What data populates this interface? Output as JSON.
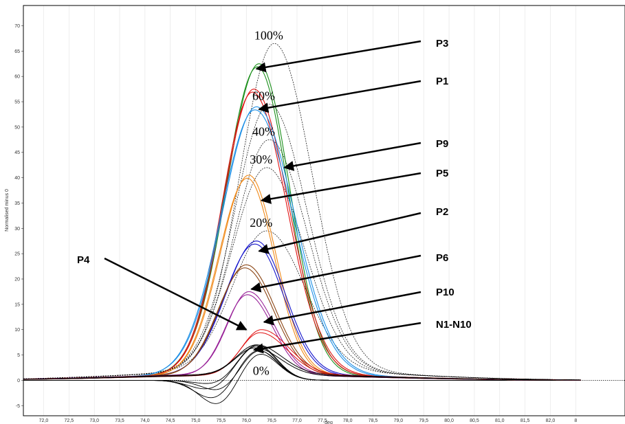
{
  "chart_data": {
    "type": "line",
    "title": "",
    "xlabel": "deg",
    "ylabel": "Normalised minus 0",
    "xlim": [
      71.6,
      82.6
    ],
    "ylim": [
      -7,
      74
    ],
    "x_ticks": [
      "72,0",
      "72,5",
      "73,0",
      "73,5",
      "74,0",
      "74,5",
      "75,0",
      "75,5",
      "76,0",
      "76,5",
      "77,0",
      "77,5",
      "78,0",
      "78,5",
      "79,0",
      "79,5",
      "80,0",
      "80,5",
      "81,0",
      "81,5",
      "82,0",
      "8"
    ],
    "y_ticks": [
      "-5",
      "0",
      "5",
      "10",
      "15",
      "20",
      "25",
      "30",
      "35",
      "40",
      "45",
      "50",
      "55",
      "60",
      "65",
      "70"
    ],
    "grid": "vertical",
    "colors": {
      "P3": "#1a8f1a",
      "P1": "#e01010",
      "P9": "#1e90e6",
      "P5": "#f08a1a",
      "P2": "#1515cc",
      "P6": "#8b4513",
      "P10": "#992299",
      "N": "#000000",
      "std": "#000000"
    },
    "standards": [
      {
        "label": "100%",
        "peak_x": 76.55,
        "peak_y": 66.5
      },
      {
        "label": "60%",
        "peak_x": 76.45,
        "peak_y": 54.5
      },
      {
        "label": "40%",
        "peak_x": 76.45,
        "peak_y": 47.5
      },
      {
        "label": "30%",
        "peak_x": 76.4,
        "peak_y": 42.0
      },
      {
        "label": "20%",
        "peak_x": 76.4,
        "peak_y": 29.5
      },
      {
        "label": "0%",
        "peak_x": 76.4,
        "peak_y": 0.0
      }
    ],
    "series": [
      {
        "name": "P3",
        "peak_x": 76.25,
        "peak_y": 62.5
      },
      {
        "name": "P1",
        "peak_x": 76.15,
        "peak_y": 57.5
      },
      {
        "name": "P9",
        "peak_x": 76.2,
        "peak_y": 54.0
      },
      {
        "name": "P5",
        "peak_x": 76.05,
        "peak_y": 40.5
      },
      {
        "name": "P2",
        "peak_x": 76.2,
        "peak_y": 27.5
      },
      {
        "name": "P6",
        "peak_x": 76.0,
        "peak_y": 22.8
      },
      {
        "name": "P10",
        "peak_x": 76.05,
        "peak_y": 17.5
      },
      {
        "name": "P4",
        "peak_x": 76.3,
        "peak_y": 10.0
      },
      {
        "name": "N1-N10",
        "peak_x": 76.2,
        "peak_y": 7.0
      }
    ],
    "annotations": [
      {
        "text": "P3",
        "tip_x": 76.2,
        "tip_y": 61.5
      },
      {
        "text": "P1",
        "tip_x": 76.25,
        "tip_y": 53.5
      },
      {
        "text": "P9",
        "tip_x": 76.75,
        "tip_y": 42.0
      },
      {
        "text": "P5",
        "tip_x": 76.3,
        "tip_y": 35.5
      },
      {
        "text": "P2",
        "tip_x": 76.25,
        "tip_y": 25.5
      },
      {
        "text": "P6",
        "tip_x": 76.1,
        "tip_y": 18.0
      },
      {
        "text": "P10",
        "tip_x": 76.35,
        "tip_y": 11.5
      },
      {
        "text": "P4",
        "tip_x": 76.0,
        "tip_y": 10.0
      },
      {
        "text": "N1-N10",
        "tip_x": 76.15,
        "tip_y": 6.0
      }
    ]
  }
}
